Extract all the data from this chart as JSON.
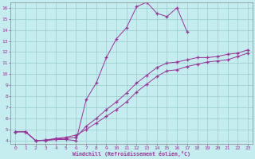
{
  "xlabel": "Windchill (Refroidissement éolien,°C)",
  "xlim": [
    -0.5,
    23.5
  ],
  "ylim": [
    3.7,
    16.5
  ],
  "xticks": [
    0,
    1,
    2,
    3,
    4,
    5,
    6,
    7,
    8,
    9,
    10,
    11,
    12,
    13,
    14,
    15,
    16,
    17,
    18,
    19,
    20,
    21,
    22,
    23
  ],
  "yticks": [
    4,
    5,
    6,
    7,
    8,
    9,
    10,
    11,
    12,
    13,
    14,
    15,
    16
  ],
  "background_color": "#c5ecee",
  "line_color": "#993399",
  "grid_color": "#99cccc",
  "line1_x": [
    0,
    1,
    2,
    3,
    4,
    5,
    6,
    7,
    8,
    9,
    10,
    11,
    12,
    13,
    14,
    15,
    16,
    17
  ],
  "line1_y": [
    4.8,
    4.8,
    4.0,
    4.0,
    4.1,
    4.1,
    4.0,
    7.7,
    9.2,
    11.5,
    13.2,
    14.2,
    16.1,
    16.5,
    15.5,
    15.2,
    16.0,
    13.8
  ],
  "line2_x": [
    0,
    1,
    2,
    3,
    4,
    5,
    6,
    7,
    8,
    9,
    10,
    11,
    12,
    13,
    14,
    15,
    16,
    17,
    18,
    19,
    20,
    21,
    22,
    23
  ],
  "line2_y": [
    4.8,
    4.8,
    4.0,
    4.05,
    4.15,
    4.2,
    4.3,
    5.3,
    6.0,
    6.8,
    7.5,
    8.3,
    9.2,
    9.9,
    10.6,
    11.0,
    11.1,
    11.3,
    11.5,
    11.5,
    11.6,
    11.8,
    11.9,
    12.2
  ],
  "line3_x": [
    0,
    1,
    2,
    3,
    4,
    5,
    6,
    7,
    8,
    9,
    10,
    11,
    12,
    13,
    14,
    15,
    16,
    17,
    18,
    19,
    20,
    21,
    22,
    23
  ],
  "line3_y": [
    4.8,
    4.8,
    4.0,
    4.05,
    4.2,
    4.3,
    4.5,
    5.0,
    5.6,
    6.2,
    6.8,
    7.5,
    8.4,
    9.1,
    9.8,
    10.3,
    10.4,
    10.7,
    10.9,
    11.1,
    11.2,
    11.3,
    11.6,
    11.9
  ]
}
